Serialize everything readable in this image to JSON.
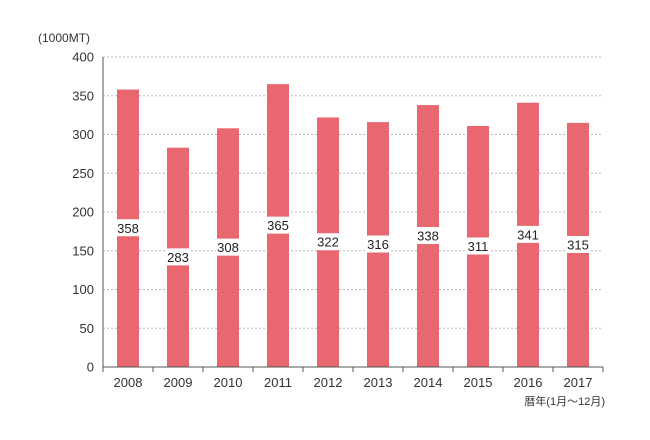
{
  "chart_data": {
    "type": "bar",
    "title": "",
    "y_unit_label": "(1000MT)",
    "x_unit_label": "暦年(1月〜12月)",
    "categories": [
      "2008",
      "2009",
      "2010",
      "2011",
      "2012",
      "2013",
      "2014",
      "2015",
      "2016",
      "2017"
    ],
    "values": [
      358,
      283,
      308,
      365,
      322,
      316,
      338,
      311,
      341,
      315
    ],
    "ylim": [
      0,
      400
    ],
    "yticks": [
      0,
      50,
      100,
      150,
      200,
      250,
      300,
      350,
      400
    ],
    "grid": true,
    "legend": "none",
    "data_labels": "inside-middle",
    "bar_color": "#e9676e",
    "grid_color": "#b8b8b8"
  }
}
